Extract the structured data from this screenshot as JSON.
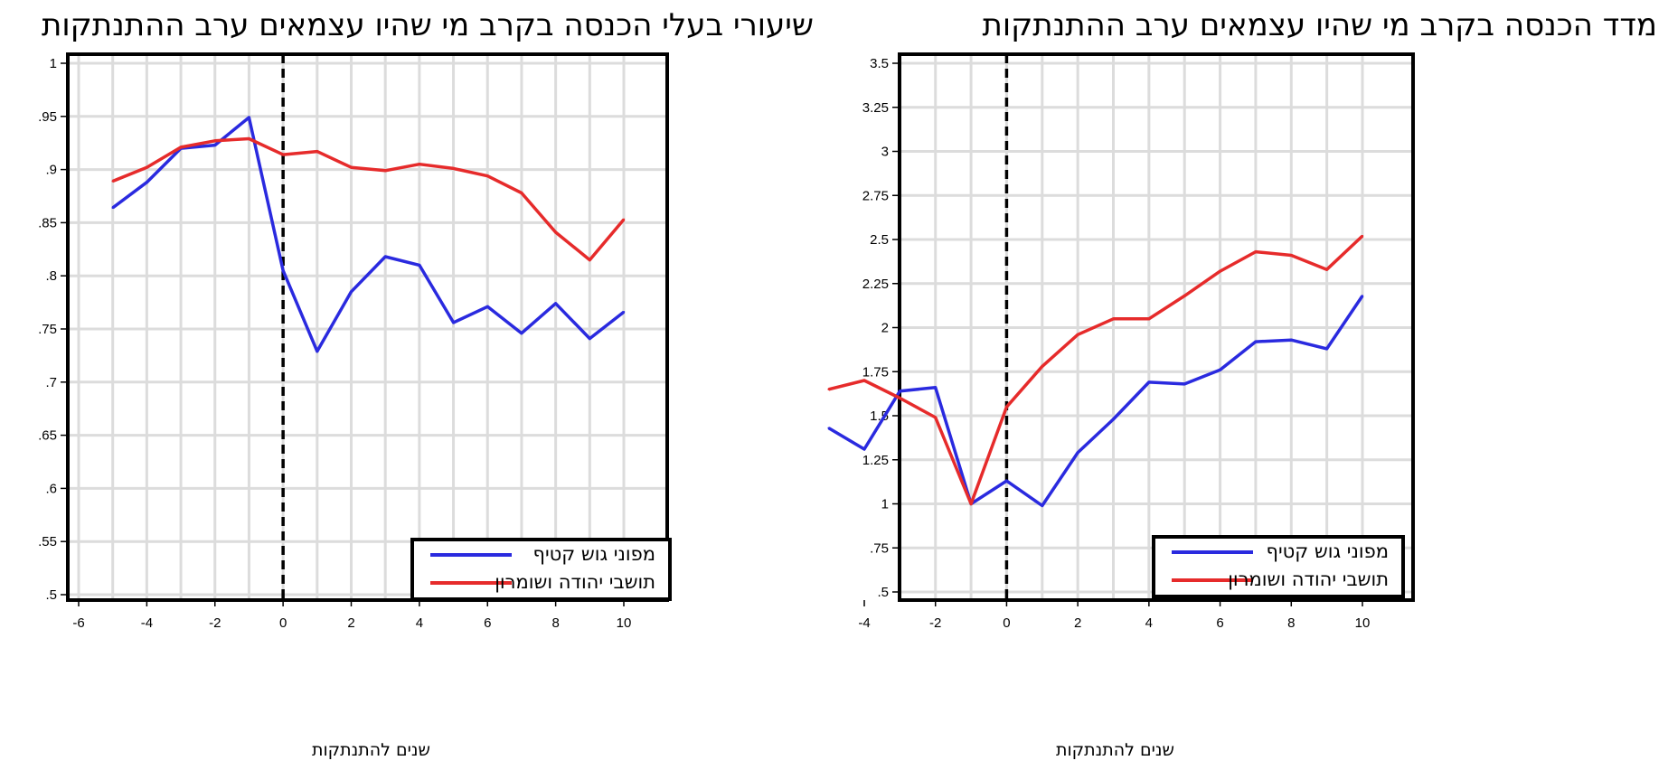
{
  "colors": {
    "series_blue": "#2a2adf",
    "series_red": "#e62b2b",
    "grid": "#dcdcdc",
    "frame": "#000000"
  },
  "chart_data": [
    {
      "type": "line",
      "title": "שיעורי בעלי הכנסה בקרב מי שהיו עצמאים ערב ההתנתקות",
      "xlabel": "שנים להתנתקות",
      "ylabel": "",
      "xlim": [
        -6,
        10
      ],
      "ylim": [
        0.5,
        1
      ],
      "x_ticks": [
        -6,
        -4,
        -2,
        0,
        2,
        4,
        6,
        8,
        10
      ],
      "x_tick_labels": [
        "-6",
        "-4",
        "-2",
        "0",
        "2",
        "4",
        "6",
        "8",
        "10"
      ],
      "y_ticks": [
        0.5,
        0.55,
        0.6,
        0.65,
        0.7,
        0.75,
        0.8,
        0.85,
        0.9,
        0.95,
        1
      ],
      "y_tick_labels": [
        ".5",
        ".55",
        ".6",
        ".65",
        ".7",
        ".75",
        ".8",
        ".85",
        ".9",
        ".95",
        "1"
      ],
      "grid": true,
      "reference_line_x": 0,
      "legend_position": "bottom-right",
      "x": [
        -5,
        -4,
        -3,
        -2,
        -1,
        0,
        1,
        2,
        3,
        4,
        5,
        6,
        7,
        8,
        9,
        10
      ],
      "series": [
        {
          "name": "מפוני גוש קטיף",
          "color": "#2a2adf",
          "values": [
            0.864,
            0.888,
            0.92,
            0.923,
            0.949,
            0.805,
            0.729,
            0.785,
            0.818,
            0.81,
            0.756,
            0.771,
            0.746,
            0.774,
            0.741,
            0.766
          ]
        },
        {
          "name": "תושבי יהודה ושומרון",
          "color": "#e62b2b",
          "values": [
            0.889,
            0.902,
            0.921,
            0.927,
            0.929,
            0.914,
            0.917,
            0.902,
            0.899,
            0.905,
            0.901,
            0.894,
            0.878,
            0.841,
            0.815,
            0.853
          ]
        }
      ]
    },
    {
      "type": "line",
      "title": "מדד הכנסה בקרב מי שהיו עצמאים ערב ההתנתקות",
      "xlabel": "שנים להתנתקות",
      "ylabel": "",
      "xlim": [
        -5.2,
        10.8
      ],
      "ylim": [
        0.5,
        3.5
      ],
      "x_ticks": [
        -4,
        -2,
        0,
        2,
        4,
        6,
        8,
        10
      ],
      "x_tick_labels": [
        "-4",
        "-2",
        "0",
        "2",
        "4",
        "6",
        "8",
        "10"
      ],
      "y_ticks": [
        0.5,
        0.75,
        1,
        1.25,
        1.5,
        1.75,
        2,
        2.25,
        2.5,
        2.75,
        3,
        3.25,
        3.5
      ],
      "y_tick_labels": [
        ".5",
        ".75",
        "1",
        "1.25",
        "1.5",
        "1.75",
        "2",
        "2.25",
        "2.5",
        "2.75",
        "3",
        "3.25",
        "3.5"
      ],
      "grid": true,
      "reference_line_x": 0,
      "legend_position": "bottom-right",
      "x": [
        -5,
        -4,
        -3,
        -2,
        -1,
        0,
        1,
        2,
        3,
        4,
        5,
        6,
        7,
        8,
        9,
        10
      ],
      "series": [
        {
          "name": "מפוני גוש קטיף",
          "color": "#2a2adf",
          "values": [
            1.43,
            1.31,
            1.64,
            1.66,
            1.0,
            1.13,
            0.99,
            1.29,
            1.48,
            1.69,
            1.68,
            1.76,
            1.92,
            1.93,
            1.88,
            2.18
          ]
        },
        {
          "name": "תושבי יהודה ושומרון",
          "color": "#e62b2b",
          "values": [
            1.65,
            1.7,
            1.6,
            1.49,
            1.0,
            1.55,
            1.78,
            1.96,
            2.05,
            2.05,
            2.18,
            2.32,
            2.43,
            2.41,
            2.33,
            2.52
          ]
        }
      ]
    }
  ]
}
